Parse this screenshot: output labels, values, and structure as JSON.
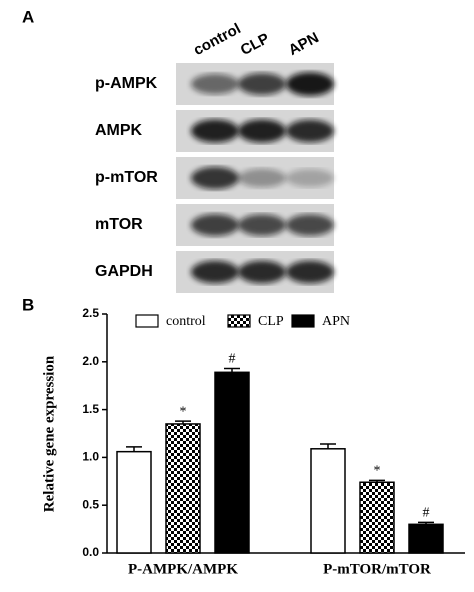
{
  "panel_a": {
    "label": "A",
    "lanes": [
      "control",
      "CLP",
      "APN"
    ],
    "proteins": [
      "p-AMPK",
      "AMPK",
      "p-mTOR",
      "mTOR",
      "GAPDH"
    ]
  },
  "chart_data": {
    "type": "bar",
    "label": "B",
    "y_label": "Relative gene expression",
    "categories": [
      "P-AMPK/AMPK",
      "P-mTOR/mTOR"
    ],
    "series": [
      {
        "name": "control",
        "color": "#ffffff",
        "values": [
          1.06,
          1.09
        ],
        "errors": [
          0.05,
          0.05
        ]
      },
      {
        "name": "CLP",
        "color": "#000000",
        "pattern": "checker",
        "values": [
          1.35,
          0.74
        ],
        "errors": [
          0.03,
          0.02
        ],
        "significance": [
          "*",
          "*"
        ]
      },
      {
        "name": "APN",
        "color": "#000000",
        "values": [
          1.89,
          0.3
        ],
        "errors": [
          0.04,
          0.02
        ],
        "significance": [
          "#",
          "#"
        ]
      }
    ],
    "ylim": [
      0,
      2.5
    ],
    "yticks": [
      {
        "value": 0,
        "label": "0.0"
      },
      0.5,
      {
        "value": 1,
        "label": "1.0"
      },
      1.5,
      {
        "value": 2,
        "label": "2.0"
      },
      2.5
    ]
  }
}
